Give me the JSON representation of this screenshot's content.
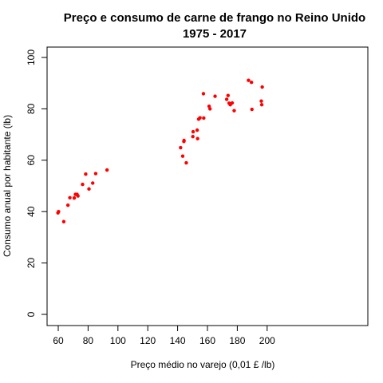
{
  "chart_data": {
    "type": "scatter",
    "title": "Preço e consumo de carne de frango no Reino Unido",
    "subtitle": "1975 - 2017",
    "xlabel": "Preço médio no varejo (0,01 £ /lb)",
    "ylabel": "Consumo anual por habitante (lb)",
    "xlim": [
      53,
      200
    ],
    "ylim": [
      0,
      100
    ],
    "xticks": [
      60,
      80,
      100,
      120,
      140,
      160,
      180,
      200
    ],
    "yticks": [
      0,
      20,
      40,
      60,
      80,
      100
    ],
    "grid": false,
    "point_color": "#ff0000",
    "points": [
      {
        "x": 59.8,
        "y": 39.5
      },
      {
        "x": 60.2,
        "y": 40.0
      },
      {
        "x": 63.7,
        "y": 36.1
      },
      {
        "x": 66.5,
        "y": 42.5
      },
      {
        "x": 67.8,
        "y": 45.4
      },
      {
        "x": 70.7,
        "y": 45.3
      },
      {
        "x": 71.5,
        "y": 46.7
      },
      {
        "x": 72.6,
        "y": 46.7
      },
      {
        "x": 73.2,
        "y": 46.1
      },
      {
        "x": 76.3,
        "y": 50.6
      },
      {
        "x": 78.4,
        "y": 54.6
      },
      {
        "x": 80.6,
        "y": 48.8
      },
      {
        "x": 83.1,
        "y": 51.1
      },
      {
        "x": 85.1,
        "y": 54.8
      },
      {
        "x": 92.7,
        "y": 56.2
      },
      {
        "x": 142.0,
        "y": 64.9
      },
      {
        "x": 143.4,
        "y": 61.6
      },
      {
        "x": 144.2,
        "y": 67.3
      },
      {
        "x": 144.3,
        "y": 67.7
      },
      {
        "x": 145.8,
        "y": 59.0
      },
      {
        "x": 150.2,
        "y": 69.2
      },
      {
        "x": 150.4,
        "y": 71.1
      },
      {
        "x": 153.1,
        "y": 71.7
      },
      {
        "x": 153.4,
        "y": 68.4
      },
      {
        "x": 154.1,
        "y": 76.0
      },
      {
        "x": 155.0,
        "y": 76.5
      },
      {
        "x": 157.3,
        "y": 85.9
      },
      {
        "x": 157.5,
        "y": 76.4
      },
      {
        "x": 161.1,
        "y": 81.0
      },
      {
        "x": 161.7,
        "y": 80.0
      },
      {
        "x": 165.1,
        "y": 84.9
      },
      {
        "x": 172.9,
        "y": 83.7
      },
      {
        "x": 173.8,
        "y": 85.2
      },
      {
        "x": 174.5,
        "y": 82.2
      },
      {
        "x": 175.3,
        "y": 81.6
      },
      {
        "x": 176.6,
        "y": 82.3
      },
      {
        "x": 177.9,
        "y": 79.3
      },
      {
        "x": 187.5,
        "y": 91.1
      },
      {
        "x": 189.5,
        "y": 90.3
      },
      {
        "x": 189.8,
        "y": 79.8
      },
      {
        "x": 196.1,
        "y": 83.0
      },
      {
        "x": 196.4,
        "y": 81.6
      },
      {
        "x": 196.7,
        "y": 88.5
      }
    ]
  }
}
